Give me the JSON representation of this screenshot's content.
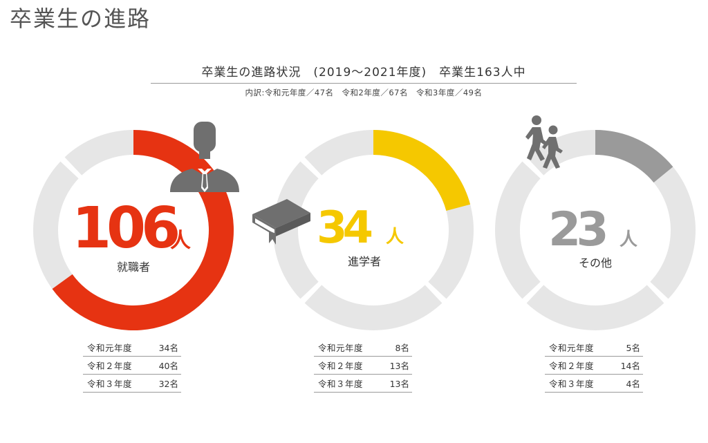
{
  "page": {
    "title": "卒業生の進路"
  },
  "header": {
    "subtitle": "卒業生の進路状況　(2019～2021年度)　卒業生163人中",
    "breakdown": "内訳:令和元年度／47名　令和2年度／67名　令和3年度／49名"
  },
  "colors": {
    "employment": "#e63312",
    "study": "#f5c800",
    "other": "#9a9a9a",
    "track": "#e6e6e6",
    "icon": "#6f6f6f"
  },
  "chart_data": {
    "type": "pie",
    "total": 163,
    "unit_label": "人",
    "categories": [
      {
        "key": "employment",
        "label": "就職者",
        "value": 106,
        "icon": "businessman-icon",
        "years": [
          {
            "label": "令和元年度",
            "value": "34名"
          },
          {
            "label": "令和２年度",
            "value": "40名"
          },
          {
            "label": "令和３年度",
            "value": "32名"
          }
        ]
      },
      {
        "key": "study",
        "label": "進学者",
        "value": 34,
        "icon": "book-icon",
        "years": [
          {
            "label": "令和元年度",
            "value": "8名"
          },
          {
            "label": "令和２年度",
            "value": "13名"
          },
          {
            "label": "令和３年度",
            "value": "13名"
          }
        ]
      },
      {
        "key": "other",
        "label": "その他",
        "value": 23,
        "icon": "walking-people-icon",
        "years": [
          {
            "label": "令和元年度",
            "value": "5名"
          },
          {
            "label": "令和２年度",
            "value": "14名"
          },
          {
            "label": "令和３年度",
            "value": "4名"
          }
        ]
      }
    ]
  }
}
